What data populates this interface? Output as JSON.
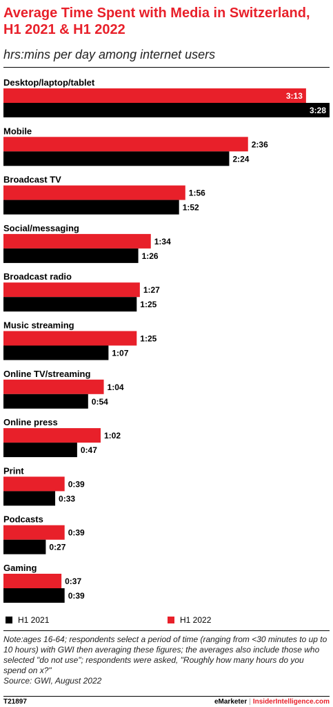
{
  "chart_data": {
    "type": "bar",
    "orientation": "horizontal",
    "title": "Average Time Spent with Media in Switzerland, H1 2021 & H1 2022",
    "subtitle": "hrs:mins per day among internet users",
    "categories": [
      "Desktop/laptop/tablet",
      "Mobile",
      "Broadcast TV",
      "Social/messaging",
      "Broadcast radio",
      "Music streaming",
      "Online TV/streaming",
      "Online press",
      "Print",
      "Podcasts",
      "Gaming"
    ],
    "series": [
      {
        "name": "H1 2022",
        "color": "#e8202a",
        "values": [
          193,
          156,
          116,
          94,
          87,
          85,
          64,
          62,
          39,
          39,
          37
        ],
        "labels": [
          "3:13",
          "2:36",
          "1:56",
          "1:34",
          "1:27",
          "1:25",
          "1:04",
          "1:02",
          "0:39",
          "0:39",
          "0:37"
        ]
      },
      {
        "name": "H1 2021",
        "color": "#000000",
        "values": [
          208,
          144,
          112,
          86,
          85,
          67,
          54,
          47,
          33,
          27,
          39
        ],
        "labels": [
          "3:28",
          "2:24",
          "1:52",
          "1:26",
          "1:25",
          "1:07",
          "0:54",
          "0:47",
          "0:33",
          "0:27",
          "0:39"
        ]
      }
    ],
    "legend": [
      "H1 2021",
      "H1 2022"
    ],
    "legend_position": "bottom",
    "grid": false
  },
  "legend_items": [
    {
      "label": "H1 2021",
      "color": "#000000"
    },
    {
      "label": "H1 2022",
      "color": "#e8202a"
    }
  ],
  "note": "Note:ages 16-64; respondents select a period of time (ranging from <30 minutes to up to 10 hours) with GWI then averaging these figures; the averages also include those who selected \"do not use\"; respondents were asked, \"Roughly how many hours do you spend on x?\"",
  "source": "Source:  GWI, August 2022",
  "footer": {
    "id": "T21897",
    "brand_emarketer": "eMarketer",
    "brand_separator": "|",
    "brand_insider": "InsiderIntelligence.com"
  }
}
